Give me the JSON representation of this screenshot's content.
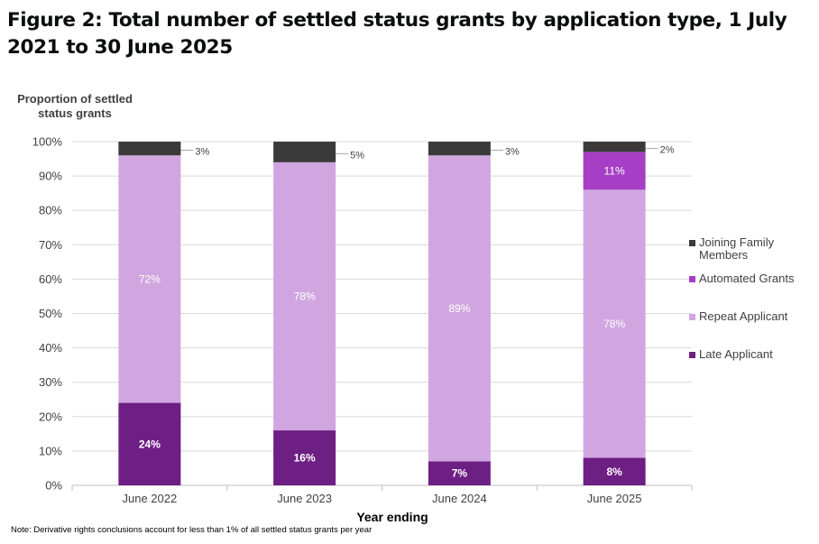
{
  "title": "Figure 2: Total number of settled status grants by application type, 1 July 2021 to 30 June 2025",
  "note": "Note: Derivative rights conclusions account for less than 1% of all settled status grants per year",
  "chart_data": {
    "type": "bar",
    "stacked": true,
    "categories": [
      "June 2022",
      "June 2023",
      "June 2024",
      "June 2025"
    ],
    "series": [
      {
        "name": "Late Applicant",
        "color": "#6e1f83",
        "values": [
          24,
          16,
          7,
          8
        ],
        "labels": [
          "24%",
          "16%",
          "7%",
          "8%"
        ]
      },
      {
        "name": "Repeat Applicant",
        "color": "#d1a6e0",
        "values": [
          72,
          78,
          89,
          78
        ],
        "labels": [
          "72%",
          "78%",
          "89%",
          "78%"
        ]
      },
      {
        "name": "Automated Grants",
        "color": "#a63fc6",
        "values": [
          0,
          0,
          0,
          11
        ],
        "labels": [
          "",
          "",
          "",
          "11%"
        ]
      },
      {
        "name": "Joining Family Members",
        "color": "#3a3a3a",
        "values": [
          3,
          5,
          3,
          2
        ],
        "labels": [
          "3%",
          "5%",
          "3%",
          "2%"
        ]
      }
    ],
    "xlabel": "Year ending",
    "ylabel": "Proportion of settled status grants",
    "ylim": [
      0,
      100
    ],
    "yticks": [
      "0%",
      "10%",
      "20%",
      "30%",
      "40%",
      "50%",
      "60%",
      "70%",
      "80%",
      "90%",
      "100%"
    ],
    "grid": true,
    "legend_placement": "right",
    "legend_order": [
      "Joining Family Members",
      "Automated Grants",
      "Repeat Applicant",
      "Late Applicant"
    ]
  }
}
